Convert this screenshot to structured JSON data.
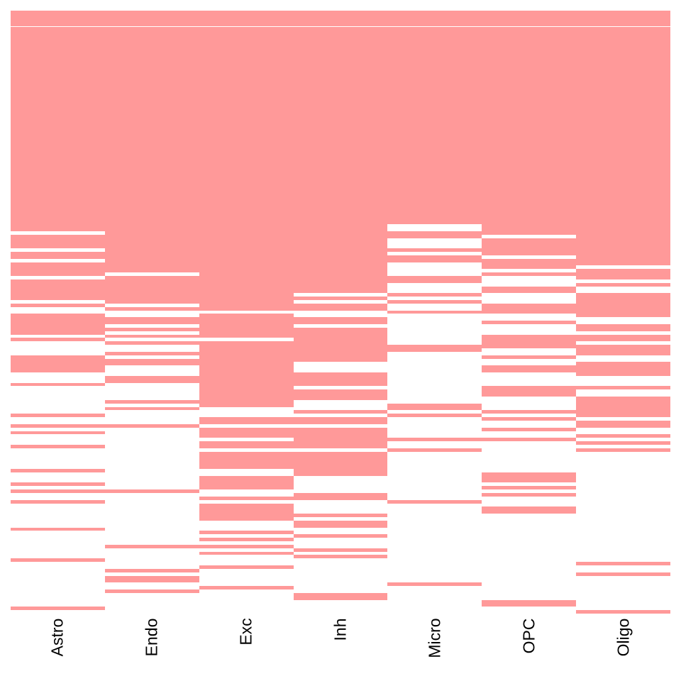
{
  "chart_data": {
    "type": "heatmap",
    "title": "",
    "xlabel": "",
    "ylabel": "",
    "n_rows": 175,
    "fill_color": "#FF9999",
    "empty_color": "#FFFFFF",
    "categories": [
      "Astro",
      "Endo",
      "Exc",
      "Inh",
      "Micro",
      "OPC",
      "Oligo"
    ],
    "filled_row_ranges": {
      "Astro": [
        [
          0,
          64
        ],
        [
          65,
          69
        ],
        [
          70,
          72
        ],
        [
          73,
          77
        ],
        [
          78,
          84
        ],
        [
          85,
          86
        ],
        [
          88,
          94
        ],
        [
          95,
          96
        ],
        [
          100,
          105
        ],
        [
          108,
          109
        ],
        [
          117,
          118
        ],
        [
          120,
          121
        ],
        [
          122,
          123
        ],
        [
          126,
          127
        ],
        [
          133,
          134
        ],
        [
          137,
          138
        ],
        [
          139,
          140
        ],
        [
          142,
          143
        ],
        [
          150,
          151
        ],
        [
          159,
          160
        ],
        [
          173,
          174
        ]
      ],
      "Endo": [
        [
          0,
          76
        ],
        [
          77,
          85
        ],
        [
          86,
          87
        ],
        [
          89,
          91
        ],
        [
          92,
          93
        ],
        [
          94,
          95
        ],
        [
          96,
          97
        ],
        [
          99,
          100
        ],
        [
          101,
          103
        ],
        [
          106,
          108
        ],
        [
          113,
          114
        ],
        [
          115,
          116
        ],
        [
          120,
          121
        ],
        [
          139,
          140
        ],
        [
          155,
          156
        ],
        [
          162,
          163
        ],
        [
          164,
          166
        ],
        [
          168,
          169
        ]
      ],
      "Exc": [
        [
          0,
          87
        ],
        [
          88,
          95
        ],
        [
          96,
          115
        ],
        [
          118,
          120
        ],
        [
          121,
          124
        ],
        [
          125,
          127
        ],
        [
          128,
          133
        ],
        [
          135,
          139
        ],
        [
          141,
          142
        ],
        [
          143,
          148
        ],
        [
          151,
          152
        ],
        [
          153,
          154
        ],
        [
          155,
          156
        ],
        [
          157,
          158
        ],
        [
          161,
          162
        ],
        [
          167,
          168
        ]
      ],
      "Inh": [
        [
          0,
          82
        ],
        [
          83,
          84
        ],
        [
          85,
          87
        ],
        [
          89,
          91
        ],
        [
          92,
          102
        ],
        [
          105,
          109
        ],
        [
          110,
          113
        ],
        [
          116,
          117
        ],
        [
          118,
          120
        ],
        [
          121,
          127
        ],
        [
          128,
          135
        ],
        [
          140,
          142
        ],
        [
          146,
          147
        ],
        [
          148,
          150
        ],
        [
          152,
          153
        ],
        [
          156,
          157
        ],
        [
          158,
          159
        ],
        [
          169,
          171
        ]
      ],
      "Micro": [
        [
          0,
          62
        ],
        [
          64,
          66
        ],
        [
          69,
          70
        ],
        [
          71,
          73
        ],
        [
          77,
          79
        ],
        [
          82,
          83
        ],
        [
          84,
          85
        ],
        [
          87,
          88
        ],
        [
          97,
          99
        ],
        [
          114,
          116
        ],
        [
          117,
          118
        ],
        [
          124,
          125
        ],
        [
          127,
          128
        ],
        [
          142,
          143
        ],
        [
          166,
          167
        ]
      ],
      "OPC": [
        [
          0,
          65
        ],
        [
          66,
          71
        ],
        [
          72,
          75
        ],
        [
          76,
          77
        ],
        [
          80,
          82
        ],
        [
          85,
          88
        ],
        [
          90,
          91
        ],
        [
          94,
          98
        ],
        [
          100,
          101
        ],
        [
          103,
          105
        ],
        [
          109,
          112
        ],
        [
          116,
          117
        ],
        [
          118,
          119
        ],
        [
          121,
          122
        ],
        [
          124,
          125
        ],
        [
          134,
          137
        ],
        [
          138,
          139
        ],
        [
          140,
          141
        ],
        [
          144,
          146
        ],
        [
          171,
          173
        ]
      ],
      "Oligo": [
        [
          0,
          74
        ],
        [
          75,
          78
        ],
        [
          79,
          80
        ],
        [
          82,
          89
        ],
        [
          91,
          93
        ],
        [
          94,
          96
        ],
        [
          97,
          100
        ],
        [
          102,
          106
        ],
        [
          109,
          110
        ],
        [
          112,
          118
        ],
        [
          119,
          121
        ],
        [
          123,
          124
        ],
        [
          125,
          126
        ],
        [
          127,
          128
        ],
        [
          160,
          161
        ],
        [
          163,
          164
        ],
        [
          174,
          175
        ]
      ]
    }
  }
}
